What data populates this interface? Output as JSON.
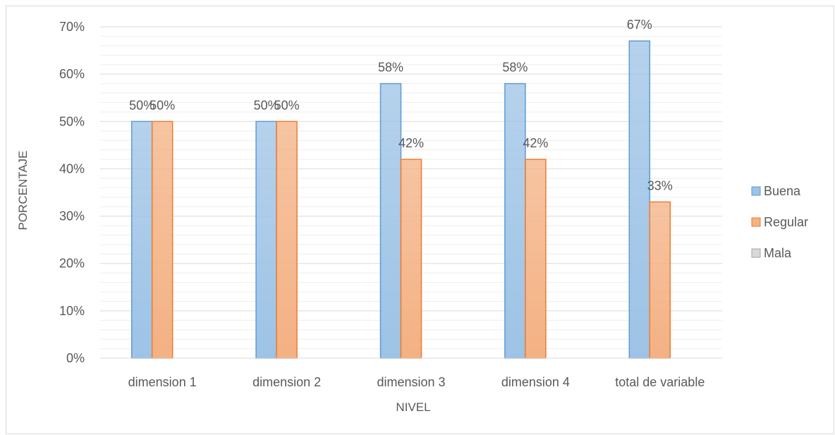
{
  "chart_data": {
    "type": "bar",
    "categories": [
      "dimension 1",
      "dimension 2",
      "dimension 3",
      "dimension 4",
      "total de variable"
    ],
    "series": [
      {
        "name": "Buena",
        "values": [
          50,
          50,
          58,
          58,
          67
        ],
        "labels": [
          "50%",
          "50%",
          "58%",
          "58%",
          "67%"
        ],
        "color": "#9dc3e6",
        "stroke": "#5b9bd5"
      },
      {
        "name": "Regular",
        "values": [
          50,
          50,
          42,
          42,
          33
        ],
        "labels": [
          "50%",
          "50%",
          "42%",
          "42%",
          "33%"
        ],
        "color": "#f4b183",
        "stroke": "#ed7d31"
      },
      {
        "name": "Mala",
        "values": [
          0,
          0,
          0,
          0,
          0
        ],
        "labels": [],
        "color": "#d9d9d9",
        "stroke": "#a5a5a5"
      }
    ],
    "ylim": [
      0,
      70
    ],
    "yticks": [
      0,
      10,
      20,
      30,
      40,
      50,
      60,
      70
    ],
    "ytick_labels": [
      "0%",
      "10%",
      "20%",
      "30%",
      "40%",
      "50%",
      "60%",
      "70%"
    ],
    "xlabel": "NIVEL",
    "ylabel": "PORCENTAJE",
    "grid": true,
    "legend_position": "right"
  }
}
